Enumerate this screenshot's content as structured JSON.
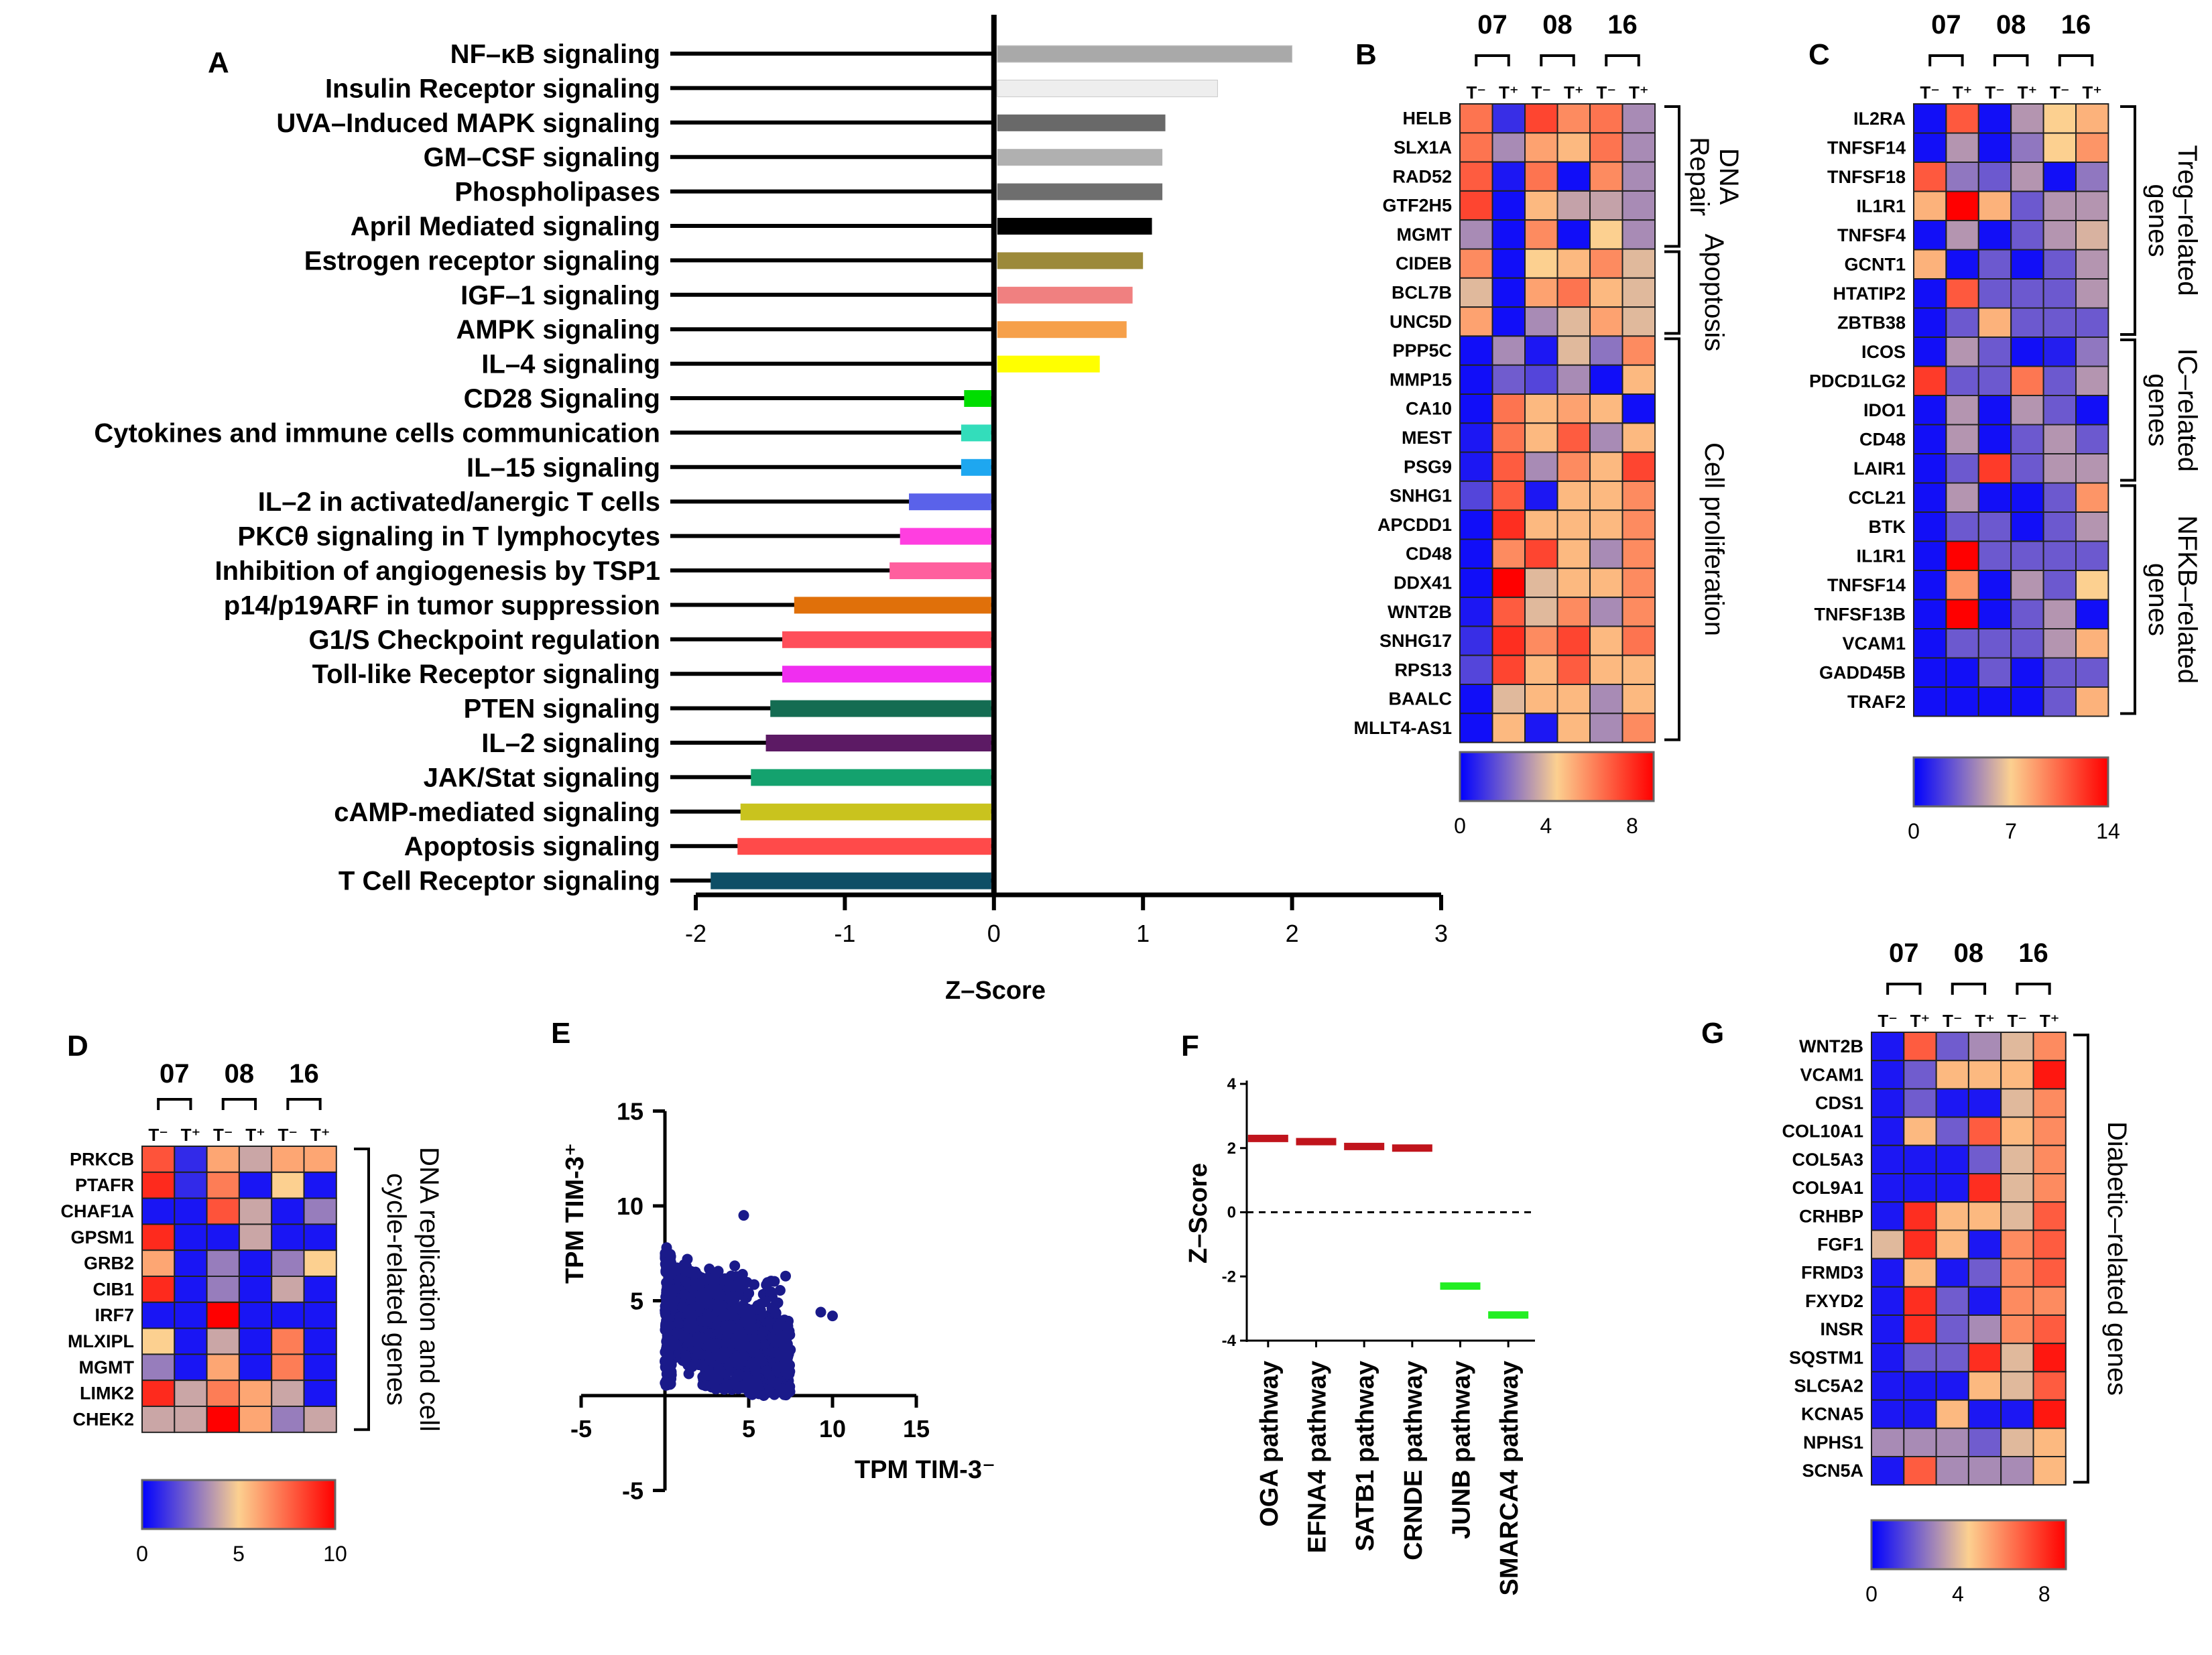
{
  "panels": {
    "A": "A",
    "B": "B",
    "C": "C",
    "D": "D",
    "E": "E",
    "F": "F",
    "G": "G"
  },
  "chart_data": [
    {
      "id": "A",
      "type": "bar",
      "orientation": "horizontal",
      "xlabel": "Z–Score",
      "xlim": [
        -2,
        3
      ],
      "xticks": [
        "-2",
        "-1",
        "0",
        "1",
        "2",
        "3"
      ],
      "categories": [
        "NF–κB signaling",
        "Insulin Receptor signaling",
        "UVA–Induced MAPK signaling",
        "GM–CSF signaling",
        "Phospholipases",
        "April Mediated signaling",
        "Estrogen receptor signaling",
        "IGF–1 signaling",
        "AMPK signaling",
        "IL–4 signaling",
        "CD28 Signaling",
        "Cytokines and immune cells communication",
        "IL–15 signaling",
        "IL–2 in activated/anergic T cells",
        "PKCθ signaling in T lymphocytes",
        "Inhibition of angiogenesis by TSP1",
        "p14/p19ARF in tumor suppression",
        "G1/S Checkpoint regulation",
        "Toll-like Receptor signaling",
        "PTEN signaling",
        "IL–2 signaling",
        "JAK/Stat signaling",
        "cAMP-mediated signaling",
        "Apoptosis signaling",
        "T Cell Receptor signaling"
      ],
      "values": [
        2.0,
        1.5,
        1.15,
        1.13,
        1.13,
        1.06,
        1.0,
        0.93,
        0.89,
        0.71,
        -0.2,
        -0.22,
        -0.22,
        -0.57,
        -0.63,
        -0.7,
        -1.34,
        -1.42,
        -1.42,
        -1.5,
        -1.53,
        -1.63,
        -1.7,
        -1.72,
        -1.9
      ],
      "colors": [
        "#a9a9a9",
        "#eeeeee",
        "#696969",
        "#b0b0b0",
        "#6e6e6e",
        "#000000",
        "#9c8a3a",
        "#f08080",
        "#f6a04a",
        "#ffff00",
        "#00dd00",
        "#33ddbb",
        "#1ea7f0",
        "#5a62ea",
        "#ff3ee0",
        "#ff5f9e",
        "#e0700a",
        "#ff4e5a",
        "#f02ef0",
        "#146c52",
        "#5c1a64",
        "#14a26e",
        "#c9c31e",
        "#ff4a4a",
        "#0e4e66"
      ]
    },
    {
      "id": "B",
      "type": "heatmap",
      "groups": [
        "07",
        "08",
        "16"
      ],
      "columns": [
        "T⁻",
        "T⁺",
        "T⁻",
        "T⁺",
        "T⁻",
        "T⁺"
      ],
      "rows": [
        "HELB",
        "SLX1A",
        "RAD52",
        "GTF2H5",
        "MGMT",
        "CIDEB",
        "BCL7B",
        "UNC5D",
        "PPP5C",
        "MMP15",
        "CA10",
        "MEST",
        "PSG9",
        "SNHG1",
        "APCDD1",
        "CD48",
        "DDX41",
        "WNT2B",
        "SNHG17",
        "RPS13",
        "BAALC",
        "MLLT4-AS1"
      ],
      "values": [
        [
          6.5,
          1,
          7.5,
          6,
          6.5,
          3
        ],
        [
          6.5,
          3,
          5.5,
          5,
          6.5,
          3
        ],
        [
          7,
          0.5,
          6.5,
          0.3,
          6,
          3
        ],
        [
          7.5,
          0.3,
          5,
          3.5,
          3.5,
          3
        ],
        [
          3,
          0.3,
          6,
          0.3,
          4.5,
          3
        ],
        [
          6,
          0.3,
          4.5,
          5,
          6,
          4
        ],
        [
          4,
          0.3,
          5.5,
          6.5,
          5,
          4
        ],
        [
          5.5,
          0.3,
          3,
          4,
          5.5,
          4
        ],
        [
          0.3,
          3,
          0.5,
          4,
          2.5,
          6
        ],
        [
          0.3,
          2,
          1.5,
          3,
          0.3,
          5
        ],
        [
          0.3,
          6.5,
          5,
          5.5,
          5,
          0.3
        ],
        [
          0.5,
          6.5,
          5,
          7,
          3,
          5
        ],
        [
          0.5,
          7,
          3,
          6,
          5,
          7.5
        ],
        [
          1.5,
          7,
          0.5,
          5,
          5,
          6
        ],
        [
          0.3,
          8,
          5,
          5,
          5,
          6
        ],
        [
          0.3,
          6,
          7.5,
          5,
          3,
          6
        ],
        [
          0.3,
          9,
          4,
          5,
          5,
          6
        ],
        [
          0.5,
          7,
          4,
          6,
          3,
          6
        ],
        [
          1,
          8,
          6,
          7.5,
          5,
          6.5
        ],
        [
          1.5,
          7.5,
          5,
          7,
          5,
          5
        ],
        [
          0.3,
          4,
          5,
          5,
          3,
          5
        ],
        [
          0.3,
          5,
          0.5,
          5,
          3,
          6
        ]
      ],
      "brackets": [
        "DNA Repair",
        "Apoptosis",
        "Cell proliferation"
      ],
      "colorbar": {
        "min": 0,
        "max": 9,
        "ticks": [
          "0",
          "4",
          "8"
        ],
        "colors": [
          "#0000ff",
          "#fcd090",
          "#ff0000"
        ]
      }
    },
    {
      "id": "C",
      "type": "heatmap",
      "groups": [
        "07",
        "08",
        "16"
      ],
      "columns": [
        "T⁻",
        "T⁺",
        "T⁻",
        "T⁺",
        "T⁻",
        "T⁺"
      ],
      "rows": [
        "IL2RA",
        "TNFSF14",
        "TNFSF18",
        "IL1R1",
        "TNFSF4",
        "GCNT1",
        "HTATIP2",
        "ZBTB38",
        "ICOS",
        "PDCD1LG2",
        "IDO1",
        "CD48",
        "LAIR1",
        "CCL21",
        "BTK",
        "IL1R1",
        "TNFSF14",
        "TNFSF13B",
        "VCAM1",
        "GADD45B",
        "TRAF2"
      ],
      "values": [
        [
          0.5,
          11,
          0.5,
          5,
          7,
          8
        ],
        [
          0.5,
          5,
          0.5,
          4,
          7,
          9
        ],
        [
          11,
          4,
          3,
          5,
          0.5,
          4
        ],
        [
          8,
          14,
          8,
          3,
          5,
          5
        ],
        [
          0.5,
          5,
          0.5,
          3,
          5,
          6
        ],
        [
          8,
          0.5,
          3,
          0.5,
          3,
          5
        ],
        [
          0.5,
          11,
          3,
          3,
          3,
          5
        ],
        [
          0.5,
          3,
          8,
          3,
          3,
          3
        ],
        [
          0.5,
          5,
          3,
          0.5,
          1,
          4
        ],
        [
          12,
          3,
          3,
          10,
          3,
          5
        ],
        [
          0.5,
          5,
          0.5,
          5,
          3,
          0.5
        ],
        [
          0.5,
          5,
          0.5,
          3,
          5,
          3
        ],
        [
          0.5,
          3,
          12,
          3,
          5,
          5
        ],
        [
          0.5,
          5,
          0.5,
          0.5,
          3,
          9
        ],
        [
          0.5,
          3,
          3,
          0.5,
          3,
          5
        ],
        [
          0.5,
          14,
          3,
          3,
          3,
          3
        ],
        [
          0.5,
          9,
          0.5,
          5,
          3,
          7
        ],
        [
          0.5,
          14,
          0.5,
          3,
          5,
          0.5
        ],
        [
          0.5,
          3,
          3,
          3,
          5,
          8
        ],
        [
          0.5,
          0.5,
          3,
          0.5,
          3,
          3
        ],
        [
          0.5,
          0.5,
          0.5,
          0.5,
          3,
          8
        ]
      ],
      "brackets": [
        "Treg–related genes",
        "IC–related genes",
        "NFKB–related genes"
      ],
      "colorbar": {
        "min": 0,
        "max": 14,
        "ticks": [
          "0",
          "7",
          "14"
        ],
        "colors": [
          "#0000ff",
          "#fcd090",
          "#ff0000"
        ]
      }
    },
    {
      "id": "D",
      "type": "heatmap",
      "groups": [
        "07",
        "08",
        "16"
      ],
      "columns": [
        "T⁻",
        "T⁺",
        "T⁻",
        "T⁺",
        "T⁻",
        "T⁺"
      ],
      "rows": [
        "PRKCB",
        "PTAFR",
        "CHAF1A",
        "GPSM1",
        "GRB2",
        "CIB1",
        "IRF7",
        "MLXIPL",
        "MGMT",
        "LIMK2",
        "CHEK2"
      ],
      "values": [
        [
          8,
          1,
          6,
          4,
          6,
          6
        ],
        [
          9,
          1,
          7,
          0.5,
          5,
          0.5
        ],
        [
          0.5,
          0.5,
          8,
          4,
          0.5,
          3
        ],
        [
          9,
          0.5,
          0.5,
          4,
          0.5,
          0.5
        ],
        [
          6,
          0.5,
          3,
          0.5,
          3,
          5
        ],
        [
          9,
          0.5,
          3,
          0.5,
          4,
          0.5
        ],
        [
          0.5,
          0.5,
          10,
          0.5,
          0.5,
          0.5
        ],
        [
          5,
          0.5,
          4,
          0.5,
          7,
          0.5
        ],
        [
          3,
          0.5,
          6,
          0.5,
          7,
          0.5
        ],
        [
          9,
          4,
          7,
          6,
          4,
          0.5
        ],
        [
          4,
          4,
          10,
          6,
          3,
          4
        ]
      ],
      "brackets": [
        "DNA replication and cell cycle-related genes"
      ],
      "colorbar": {
        "min": 0,
        "max": 10,
        "ticks": [
          "0",
          "5",
          "10"
        ],
        "colors": [
          "#0000ff",
          "#fcd090",
          "#ff0000"
        ]
      }
    },
    {
      "id": "E",
      "type": "scatter",
      "xlabel": "TPM TIM-3⁻",
      "ylabel": "TPM TIM-3⁺",
      "xlim": [
        -5,
        15
      ],
      "ylim": [
        -5,
        15
      ],
      "xticks": [
        "-5",
        "5",
        "10",
        "15"
      ],
      "yticks": [
        "-5",
        "5",
        "10",
        "15"
      ],
      "n_points": 1500,
      "color": "#1a1a8a"
    },
    {
      "id": "F",
      "type": "scatter",
      "ylabel": "Z–Score",
      "ylim": [
        -4,
        4
      ],
      "yticks": [
        "4",
        "2",
        "0",
        "-2",
        "-4"
      ],
      "categories": [
        "OGA pathway",
        "EFNA4 pathway",
        "SATB1 pathway",
        "CRNDE pathway",
        "JUNB pathway",
        "SMARCA4 pathway"
      ],
      "values": [
        2.3,
        2.2,
        2.05,
        2.0,
        -2.3,
        -3.2
      ],
      "colors": [
        "#c0141c",
        "#c0141c",
        "#c0141c",
        "#c0141c",
        "#22ee22",
        "#22ee22"
      ],
      "reference_line": 0
    },
    {
      "id": "G",
      "type": "heatmap",
      "groups": [
        "07",
        "08",
        "16"
      ],
      "columns": [
        "T⁻",
        "T⁺",
        "T⁻",
        "T⁺",
        "T⁻",
        "T⁺"
      ],
      "rows": [
        "WNT2B",
        "VCAM1",
        "CDS1",
        "COL10A1",
        "COL5A3",
        "COL9A1",
        "CRHBP",
        "FGF1",
        "FRMD3",
        "FXYD2",
        "INSR",
        "SQSTM1",
        "SLC5A2",
        "KCNA5",
        "NPHS1",
        "SCN5A"
      ],
      "values": [
        [
          0.5,
          7,
          2,
          3,
          4,
          6
        ],
        [
          0.5,
          2,
          5,
          5,
          5,
          8.5
        ],
        [
          0.5,
          2,
          0.5,
          0.5,
          4,
          6
        ],
        [
          0.5,
          5,
          2,
          7,
          5,
          6
        ],
        [
          0.5,
          0.5,
          0.5,
          2,
          4,
          6
        ],
        [
          0.5,
          0.5,
          0.5,
          8,
          4,
          6
        ],
        [
          0.5,
          8,
          5,
          5,
          4,
          7
        ],
        [
          4,
          8,
          5,
          0.5,
          6,
          7
        ],
        [
          0.5,
          5,
          0.5,
          2,
          6,
          7
        ],
        [
          0.5,
          8,
          2,
          0.5,
          6,
          6
        ],
        [
          0.5,
          8,
          2,
          3,
          6,
          7
        ],
        [
          0.5,
          2,
          2,
          8,
          4,
          8.5
        ],
        [
          0.5,
          0.5,
          0.5,
          5,
          4,
          7
        ],
        [
          0.5,
          0.5,
          5,
          0.5,
          0.5,
          8.5
        ],
        [
          3,
          3,
          3,
          2,
          4,
          5
        ],
        [
          0.5,
          7,
          3,
          3,
          3,
          5
        ]
      ],
      "brackets": [
        "Diabetic–related genes"
      ],
      "colorbar": {
        "min": 0,
        "max": 9,
        "ticks": [
          "0",
          "4",
          "8"
        ],
        "colors": [
          "#0000ff",
          "#fcd090",
          "#ff0000"
        ]
      }
    }
  ]
}
